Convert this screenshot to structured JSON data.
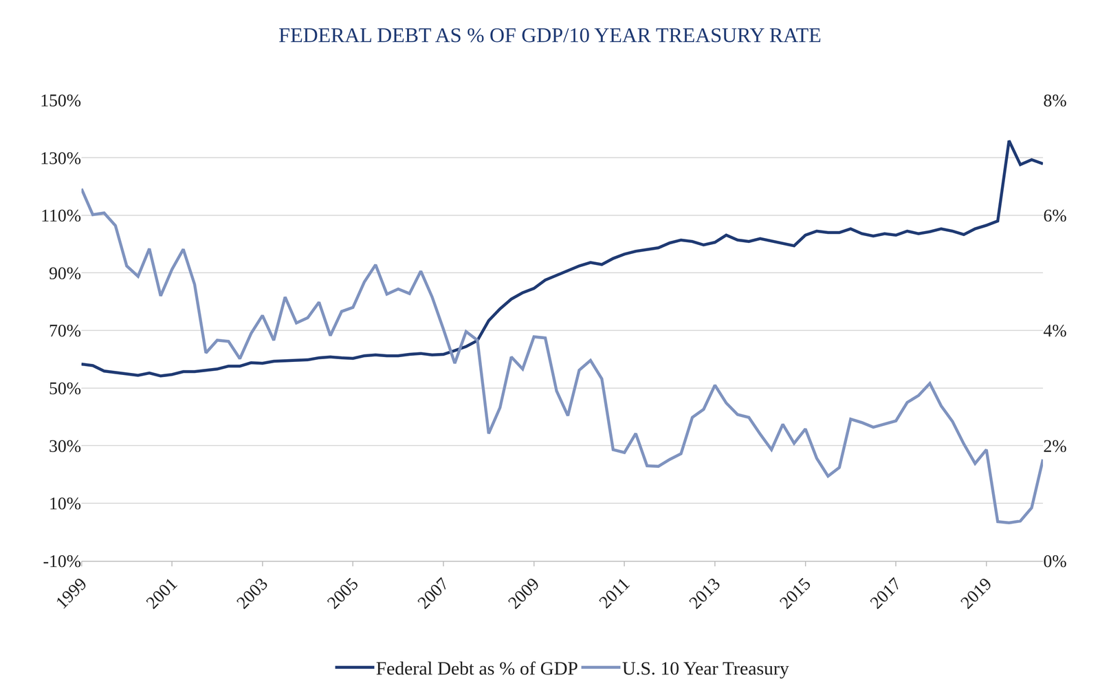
{
  "chart_data": {
    "type": "line",
    "title": "FEDERAL DEBT AS % OF GDP/10 YEAR TREASURY RATE",
    "x": [
      1999,
      1999.25,
      1999.5,
      1999.75,
      2000,
      2000.25,
      2000.5,
      2000.75,
      2001,
      2001.25,
      2001.5,
      2001.75,
      2002,
      2002.25,
      2002.5,
      2002.75,
      2003,
      2003.25,
      2003.5,
      2003.75,
      2004,
      2004.25,
      2004.5,
      2004.75,
      2005,
      2005.25,
      2005.5,
      2005.75,
      2006,
      2006.25,
      2006.5,
      2006.75,
      2007,
      2007.25,
      2007.5,
      2007.75,
      2008,
      2008.25,
      2008.5,
      2008.75,
      2009,
      2009.25,
      2009.5,
      2009.75,
      2010,
      2010.25,
      2010.5,
      2010.75,
      2011,
      2011.25,
      2011.5,
      2011.75,
      2012,
      2012.25,
      2012.5,
      2012.75,
      2013,
      2013.25,
      2013.5,
      2013.75,
      2014,
      2014.25,
      2014.5,
      2014.75,
      2015,
      2015.25,
      2015.5,
      2015.75,
      2016,
      2016.25,
      2016.5,
      2016.75,
      2017,
      2017.25,
      2017.5,
      2017.75,
      2018,
      2018.25,
      2018.5,
      2018.75,
      2019,
      2019.25,
      2019.5,
      2019.75,
      2020,
      2020.25
    ],
    "series": [
      {
        "name": "Federal Debt as % of GDP",
        "color": "#1f3a73",
        "values": [
          58.3,
          57.8,
          55.9,
          55.4,
          54.9,
          54.4,
          55.2,
          54.2,
          54.7,
          55.7,
          55.7,
          56.1,
          56.6,
          57.6,
          57.6,
          58.8,
          58.6,
          59.3,
          59.5,
          59.8,
          59.8,
          60.5,
          60.8,
          60.5,
          60.3,
          61.2,
          61.5,
          61.2,
          61.2,
          61.7,
          62.0,
          61.5,
          61.7,
          63.0,
          64.4,
          66.5,
          73.4,
          77.5,
          80.9,
          83.1,
          84.6,
          87.5,
          89.2,
          90.7,
          92.4,
          93.6,
          92.9,
          95.0,
          96.5,
          97.5,
          98.2,
          98.7,
          100.4,
          101.4,
          100.9,
          99.7,
          100.6,
          103.1,
          101.4,
          100.9,
          101.9,
          101.1,
          100.2,
          99.4,
          103.1,
          104.5,
          104.0,
          104.0,
          105.3,
          103.6,
          102.8,
          103.6,
          103.1,
          104.5,
          103.6,
          104.3,
          105.3,
          104.5,
          103.3,
          105.3,
          106.5,
          108.0,
          135.9,
          127.6,
          129.3,
          127.9
        ]
      },
      {
        "name": "U.S. 10 Year Treasury",
        "color": "#7f93bf",
        "axis": "y2",
        "values": [
          6.46,
          6.01,
          6.04,
          5.82,
          5.12,
          4.94,
          5.42,
          4.6,
          5.06,
          5.41,
          4.8,
          3.61,
          3.83,
          3.81,
          3.51,
          3.95,
          4.26,
          3.83,
          4.58,
          4.13,
          4.22,
          4.49,
          3.91,
          4.33,
          4.4,
          4.84,
          5.14,
          4.63,
          4.72,
          4.64,
          5.03,
          4.58,
          4.02,
          3.43,
          3.98,
          3.83,
          2.21,
          2.66,
          3.54,
          3.33,
          3.89,
          3.87,
          2.95,
          2.52,
          3.31,
          3.48,
          3.16,
          1.93,
          1.88,
          2.21,
          1.65,
          1.64,
          1.76,
          1.86,
          2.49,
          2.63,
          3.05,
          2.74,
          2.54,
          2.49,
          2.2,
          1.93,
          2.37,
          2.04,
          2.29,
          1.78,
          1.47,
          1.62,
          2.46,
          2.4,
          2.32,
          2.37,
          2.43,
          2.75,
          2.87,
          3.08,
          2.69,
          2.42,
          2.03,
          1.69,
          1.93,
          0.68,
          0.66,
          0.69,
          0.92,
          1.76
        ]
      }
    ],
    "xlim": [
      1999,
      2020.25
    ],
    "xticks": [
      1999,
      2001,
      2003,
      2005,
      2007,
      2009,
      2011,
      2013,
      2015,
      2017,
      2019
    ],
    "ylim": [
      -10,
      150
    ],
    "yticks": [
      {
        "value": -10,
        "label": "-10%"
      },
      {
        "value": 10,
        "label": "10%"
      },
      {
        "value": 30,
        "label": "30%"
      },
      {
        "value": 50,
        "label": "50%"
      },
      {
        "value": 70,
        "label": "70%"
      },
      {
        "value": 90,
        "label": "90%"
      },
      {
        "value": 110,
        "label": "110%"
      },
      {
        "value": 130,
        "label": "130%"
      },
      {
        "value": 150,
        "label": "150%"
      }
    ],
    "y2lim": [
      0,
      8
    ],
    "y2ticks": [
      {
        "value": 0,
        "label": "0%"
      },
      {
        "value": 2,
        "label": "2%"
      },
      {
        "value": 4,
        "label": "4%"
      },
      {
        "value": 6,
        "label": "6%"
      },
      {
        "value": 8,
        "label": "8%"
      }
    ],
    "grid": true,
    "legend": "bottom"
  }
}
